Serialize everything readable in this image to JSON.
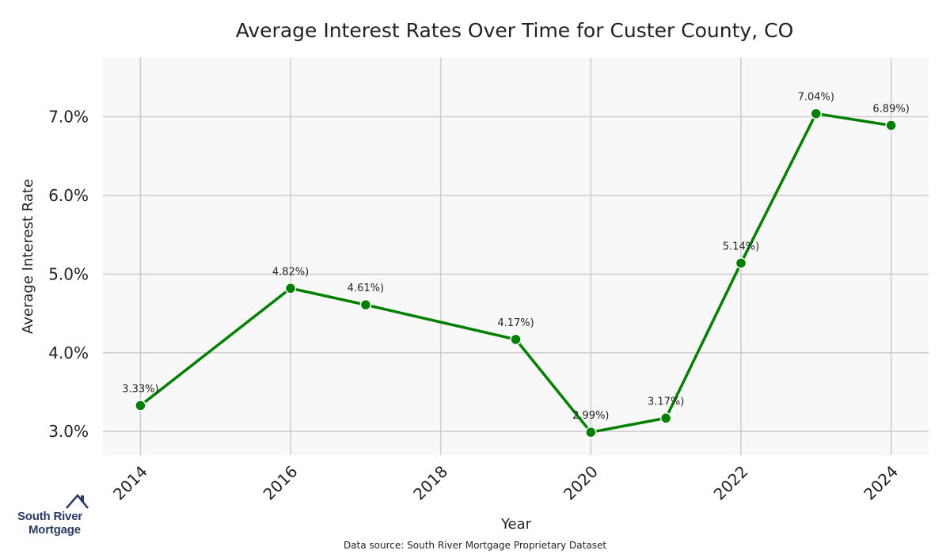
{
  "chart_data": {
    "type": "line",
    "title": "Average Interest Rates Over Time for Custer County, CO",
    "xlabel": "Year",
    "ylabel": "Average Interest Rate",
    "source": "Data source: South River Mortgage Proprietary Dataset",
    "x": [
      2014,
      2016,
      2017,
      2019,
      2020,
      2021,
      2022,
      2023,
      2024
    ],
    "values": [
      3.33,
      4.82,
      4.61,
      4.17,
      2.99,
      3.17,
      5.14,
      7.04,
      6.89
    ],
    "data_labels": [
      "3.33%)",
      "4.82%)",
      "4.61%)",
      "4.17%)",
      "2.99%)",
      "3.17%)",
      "5.14%)",
      "7.04%)",
      "6.89%)"
    ],
    "xticks": [
      2014,
      2016,
      2018,
      2020,
      2022,
      2024
    ],
    "xtick_labels": [
      "2014",
      "2016",
      "2018",
      "2020",
      "2022",
      "2024"
    ],
    "yticks": [
      3.0,
      4.0,
      5.0,
      6.0,
      7.0
    ],
    "ytick_labels": [
      "3.0%",
      "4.0%",
      "5.0%",
      "6.0%",
      "7.0%"
    ],
    "xlim": [
      2013.5,
      2024.5
    ],
    "ylim": [
      2.7,
      7.75
    ],
    "grid": true,
    "line_color": "#008000",
    "plot_background": "#f8f8f8",
    "grid_color": "#cccccc"
  },
  "logo": {
    "line1": "South River",
    "line2": "Mortgage",
    "color": "#2b3a67"
  }
}
